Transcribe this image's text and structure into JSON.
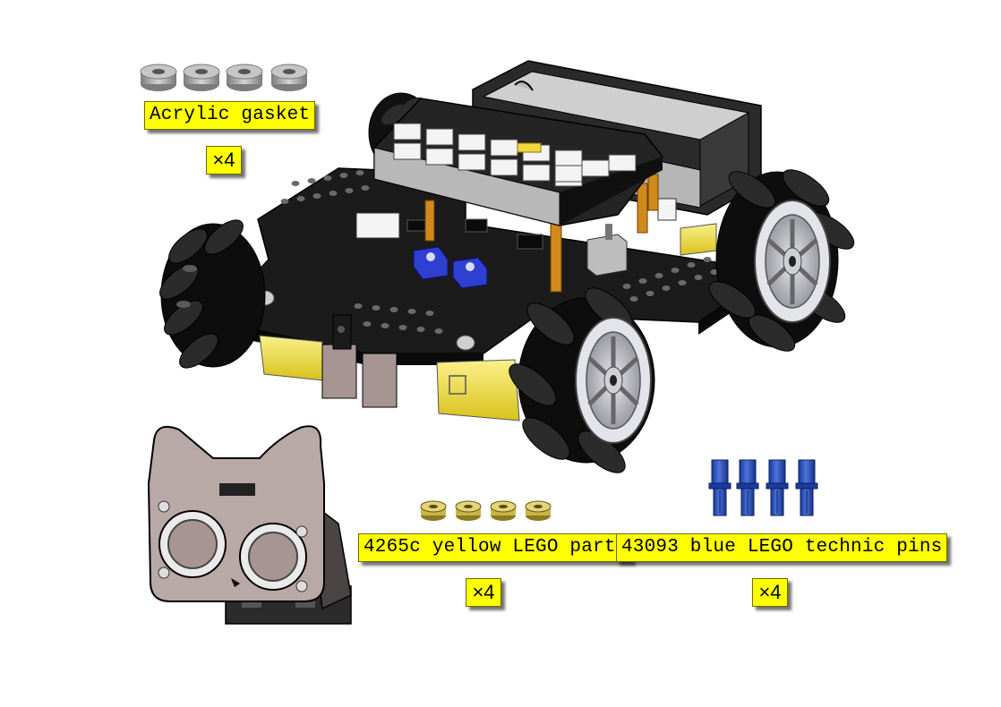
{
  "labels": {
    "acrylic_gasket": "Acrylic gasket",
    "acrylic_gasket_qty": "×4",
    "yellow_lego": "4265c yellow LEGO parts",
    "yellow_lego_qty": "×4",
    "blue_pins": "43093 blue LEGO technic pins",
    "blue_pins_qty": "×4"
  },
  "colors": {
    "label_bg": "#ffff00",
    "chassis": "#1e1e1e",
    "wheel_roller": "#141414",
    "hub": "#cfcfd6",
    "motor": "#f0e030",
    "sensor_mount": "#b8a9a6",
    "pin_blue": "#1f48b8",
    "lego_yellow": "#c8b64a",
    "gasket": "#a8a8a8",
    "connector_white": "#f2f2f2",
    "potentiometer": "#2f3fd0",
    "standoff": "#d08a1c"
  },
  "parts": [
    {
      "name": "acrylic-gasket",
      "count": 4
    },
    {
      "name": "yellow-lego-part",
      "count": 4
    },
    {
      "name": "blue-lego-technic-pin",
      "count": 4
    },
    {
      "name": "mecanum-wheel",
      "count": 4
    }
  ]
}
